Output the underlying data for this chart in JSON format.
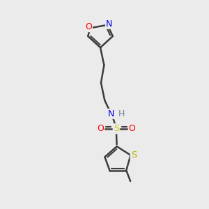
{
  "bg_color": "#ebebeb",
  "bond_color": "#3d3d3d",
  "bond_width": 1.8,
  "atom_colors": {
    "O": "#ff0000",
    "N": "#0000ee",
    "S_thio": "#b8b000",
    "S_sulfo": "#cccc00",
    "H": "#708090",
    "C": "#3d3d3d"
  },
  "figsize": [
    3.0,
    3.0
  ],
  "dpi": 100
}
